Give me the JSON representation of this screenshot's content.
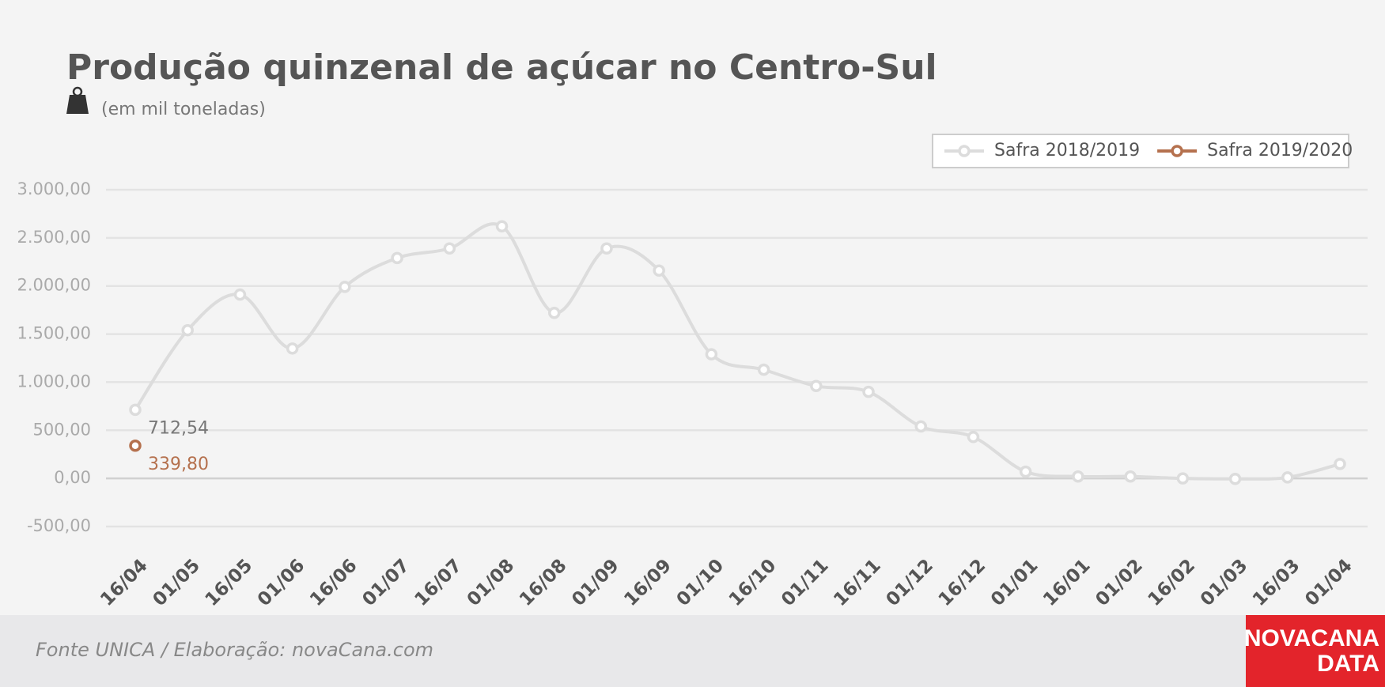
{
  "chart_data": {
    "type": "line",
    "title": "Produção quinzenal de açúcar no Centro-Sul",
    "subtitle": "(em mil toneladas)",
    "source": "Fonte UNICA / Elaboração: novaCana.com",
    "brand": [
      "NOVACANA",
      "DATA"
    ],
    "categories": [
      "16/04",
      "01/05",
      "16/05",
      "01/06",
      "16/06",
      "01/07",
      "16/07",
      "01/08",
      "16/08",
      "01/09",
      "16/09",
      "01/10",
      "16/10",
      "01/11",
      "16/11",
      "01/12",
      "16/12",
      "01/01",
      "16/01",
      "01/02",
      "16/02",
      "01/03",
      "16/03",
      "01/04"
    ],
    "series": [
      {
        "name": "Safra 2018/2019",
        "color": "#dcdcdc",
        "values": [
          712.54,
          1540,
          1910,
          1350,
          1990,
          2290,
          2390,
          2620,
          1720,
          2390,
          2160,
          1290,
          1130,
          960,
          900,
          540,
          430,
          70,
          20,
          20,
          0,
          -5,
          10,
          150
        ],
        "value_labels": [
          "712,54",
          null,
          null,
          null,
          null,
          null,
          null,
          null,
          null,
          null,
          null,
          null,
          null,
          null,
          null,
          null,
          null,
          null,
          null,
          null,
          null,
          null,
          null,
          null
        ],
        "label_color": "#777777"
      },
      {
        "name": "Safra 2019/2020",
        "color": "#b5714e",
        "values": [
          339.8,
          null,
          null,
          null,
          null,
          null,
          null,
          null,
          null,
          null,
          null,
          null,
          null,
          null,
          null,
          null,
          null,
          null,
          null,
          null,
          null,
          null,
          null,
          null
        ],
        "value_labels": [
          "339,80",
          null,
          null,
          null,
          null,
          null,
          null,
          null,
          null,
          null,
          null,
          null,
          null,
          null,
          null,
          null,
          null,
          null,
          null,
          null,
          null,
          null,
          null,
          null
        ],
        "label_color": "#b5714e"
      }
    ],
    "ylim": [
      -500,
      3000
    ],
    "yticks": [
      {
        "value": -500,
        "label": "-500,00"
      },
      {
        "value": 0,
        "label": "0,00"
      },
      {
        "value": 500,
        "label": "500,00"
      },
      {
        "value": 1000,
        "label": "1.000,00"
      },
      {
        "value": 1500,
        "label": "1.500,00"
      },
      {
        "value": 2000,
        "label": "2.000,00"
      },
      {
        "value": 2500,
        "label": "2.500,00"
      },
      {
        "value": 3000,
        "label": "3.000,00"
      }
    ],
    "grid": true,
    "smooth": true
  }
}
